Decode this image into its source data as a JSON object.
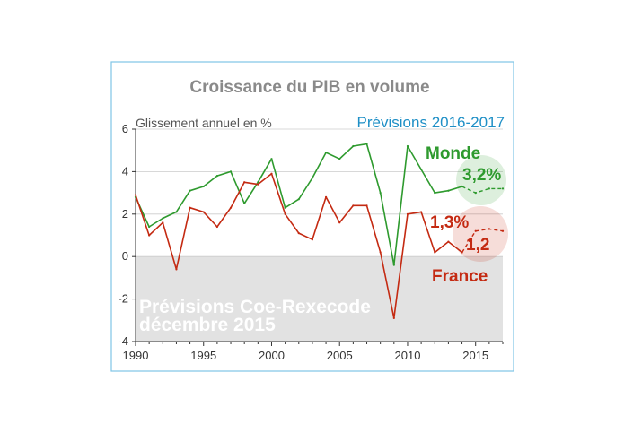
{
  "chart_data": {
    "type": "line",
    "title": "Croissance du PIB en volume",
    "ylabel": "Glissement annuel en %",
    "forecast_label": "Prévisions 2016-2017",
    "shaded_note_line1": "Prévisions Coe-Rexecode",
    "shaded_note_line2": "décembre 2015",
    "xlim": [
      1990,
      2017
    ],
    "ylim": [
      -4,
      6
    ],
    "x_ticks": [
      "1990",
      "1995",
      "2000",
      "2005",
      "2010",
      "2015"
    ],
    "y_ticks": [
      "6",
      "4",
      "2",
      "0",
      "-2",
      "-4"
    ],
    "legend": "inline",
    "series": [
      {
        "name": "Monde",
        "color": "#2e9a2e",
        "x": [
          1990,
          1991,
          1992,
          1993,
          1994,
          1995,
          1996,
          1997,
          1998,
          1999,
          2000,
          2001,
          2002,
          2003,
          2004,
          2005,
          2006,
          2007,
          2008,
          2009,
          2010,
          2011,
          2012,
          2013,
          2014
        ],
        "y": [
          2.8,
          1.4,
          1.8,
          2.1,
          3.1,
          3.3,
          3.8,
          4.0,
          2.5,
          3.5,
          4.6,
          2.3,
          2.7,
          3.7,
          4.9,
          4.6,
          5.2,
          5.3,
          3.0,
          -0.4,
          5.2,
          4.1,
          3.0,
          3.1,
          3.3
        ],
        "forecast": {
          "x": [
            2014,
            2015,
            2016,
            2017
          ],
          "y": [
            3.3,
            3.0,
            3.2,
            3.2
          ],
          "value_label": "3,2%"
        }
      },
      {
        "name": "France",
        "color": "#c42a12",
        "x": [
          1990,
          1991,
          1992,
          1993,
          1994,
          1995,
          1996,
          1997,
          1998,
          1999,
          2000,
          2001,
          2002,
          2003,
          2004,
          2005,
          2006,
          2007,
          2008,
          2009,
          2010,
          2011,
          2012,
          2013,
          2014
        ],
        "y": [
          2.9,
          1.0,
          1.6,
          -0.6,
          2.3,
          2.1,
          1.4,
          2.3,
          3.5,
          3.4,
          3.9,
          2.0,
          1.1,
          0.8,
          2.8,
          1.6,
          2.4,
          2.4,
          0.2,
          -2.9,
          2.0,
          2.1,
          0.2,
          0.7,
          0.2
        ],
        "forecast": {
          "x": [
            2014,
            2015,
            2016,
            2017
          ],
          "y": [
            0.2,
            1.2,
            1.3,
            1.2
          ],
          "value_label_upper": "1,3%",
          "value_label_lower": "1,2"
        }
      }
    ]
  }
}
